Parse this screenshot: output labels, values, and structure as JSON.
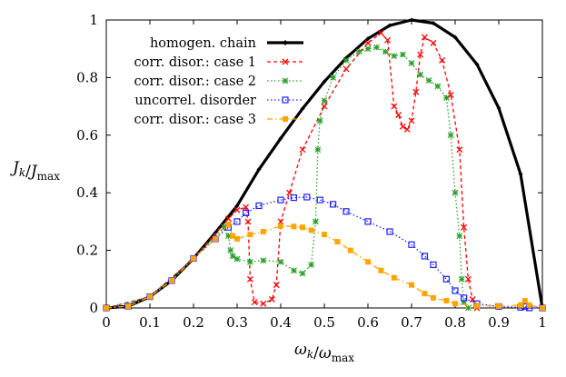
{
  "chart_data": {
    "type": "line",
    "xlabel": "ω_k/ω_max",
    "ylabel": "J_k/J_max",
    "xlim": [
      0,
      1
    ],
    "ylim": [
      0,
      1
    ],
    "grid": false,
    "legend_position": "top-left",
    "x_ticks": [
      "0",
      "0.1",
      "0.2",
      "0.3",
      "0.4",
      "0.5",
      "0.6",
      "0.7",
      "0.8",
      "0.9",
      "1"
    ],
    "y_ticks": [
      "0",
      "0.2",
      "0.4",
      "0.6",
      "0.8",
      "1"
    ],
    "series": [
      {
        "name": "homogen. chain",
        "color": "#000000",
        "marker": "diamond",
        "style": "solid",
        "points": [
          [
            0.0,
            0.0
          ],
          [
            0.05,
            0.006
          ],
          [
            0.1,
            0.039
          ],
          [
            0.15,
            0.095
          ],
          [
            0.2,
            0.172
          ],
          [
            0.25,
            0.261
          ],
          [
            0.3,
            0.355
          ],
          [
            0.35,
            0.481
          ],
          [
            0.4,
            0.589
          ],
          [
            0.45,
            0.692
          ],
          [
            0.5,
            0.786
          ],
          [
            0.55,
            0.868
          ],
          [
            0.6,
            0.935
          ],
          [
            0.65,
            0.981
          ],
          [
            0.7,
            1.0
          ],
          [
            0.75,
            0.989
          ],
          [
            0.8,
            0.94
          ],
          [
            0.85,
            0.846
          ],
          [
            0.9,
            0.694
          ],
          [
            0.95,
            0.465
          ],
          [
            1.0,
            0.0
          ]
        ]
      },
      {
        "name": "corr. disor.: case 1",
        "color": "#ff0000",
        "marker": "x",
        "style": "dashed",
        "points": [
          [
            0.0,
            0.0
          ],
          [
            0.1,
            0.039
          ],
          [
            0.2,
            0.172
          ],
          [
            0.28,
            0.31
          ],
          [
            0.3,
            0.34
          ],
          [
            0.32,
            0.35
          ],
          [
            0.325,
            0.3
          ],
          [
            0.33,
            0.1
          ],
          [
            0.34,
            0.02
          ],
          [
            0.36,
            0.015
          ],
          [
            0.38,
            0.03
          ],
          [
            0.39,
            0.08
          ],
          [
            0.4,
            0.3
          ],
          [
            0.42,
            0.4
          ],
          [
            0.45,
            0.55
          ],
          [
            0.5,
            0.7
          ],
          [
            0.55,
            0.83
          ],
          [
            0.6,
            0.92
          ],
          [
            0.63,
            0.955
          ],
          [
            0.645,
            0.93
          ],
          [
            0.66,
            0.7
          ],
          [
            0.67,
            0.67
          ],
          [
            0.68,
            0.63
          ],
          [
            0.69,
            0.62
          ],
          [
            0.7,
            0.65
          ],
          [
            0.71,
            0.75
          ],
          [
            0.72,
            0.88
          ],
          [
            0.73,
            0.94
          ],
          [
            0.75,
            0.92
          ],
          [
            0.77,
            0.86
          ],
          [
            0.79,
            0.74
          ],
          [
            0.81,
            0.55
          ],
          [
            0.82,
            0.28
          ],
          [
            0.83,
            0.1
          ],
          [
            0.84,
            0.03
          ],
          [
            0.85,
            0.0
          ]
        ]
      },
      {
        "name": "corr. disor.: case 2",
        "color": "#2ca02c",
        "marker": "asterisk",
        "style": "dotted",
        "points": [
          [
            0.0,
            0.0
          ],
          [
            0.1,
            0.039
          ],
          [
            0.2,
            0.172
          ],
          [
            0.27,
            0.28
          ],
          [
            0.28,
            0.25
          ],
          [
            0.285,
            0.2
          ],
          [
            0.29,
            0.18
          ],
          [
            0.3,
            0.17
          ],
          [
            0.33,
            0.16
          ],
          [
            0.36,
            0.165
          ],
          [
            0.4,
            0.16
          ],
          [
            0.43,
            0.13
          ],
          [
            0.45,
            0.12
          ],
          [
            0.47,
            0.15
          ],
          [
            0.48,
            0.3
          ],
          [
            0.485,
            0.55
          ],
          [
            0.49,
            0.65
          ],
          [
            0.5,
            0.72
          ],
          [
            0.52,
            0.8
          ],
          [
            0.55,
            0.86
          ],
          [
            0.58,
            0.89
          ],
          [
            0.6,
            0.9
          ],
          [
            0.62,
            0.905
          ],
          [
            0.64,
            0.89
          ],
          [
            0.66,
            0.875
          ],
          [
            0.68,
            0.88
          ],
          [
            0.7,
            0.85
          ],
          [
            0.72,
            0.81
          ],
          [
            0.74,
            0.79
          ],
          [
            0.76,
            0.77
          ],
          [
            0.78,
            0.73
          ],
          [
            0.79,
            0.6
          ],
          [
            0.8,
            0.4
          ],
          [
            0.81,
            0.25
          ],
          [
            0.815,
            0.1
          ],
          [
            0.82,
            0.02
          ],
          [
            0.83,
            0.0
          ]
        ]
      },
      {
        "name": "uncorrel. disorder",
        "color": "#1f1fff",
        "marker": "square-open",
        "style": "dotted",
        "points": [
          [
            0.0,
            0.0
          ],
          [
            0.05,
            0.006
          ],
          [
            0.1,
            0.039
          ],
          [
            0.15,
            0.095
          ],
          [
            0.2,
            0.172
          ],
          [
            0.25,
            0.24
          ],
          [
            0.28,
            0.28
          ],
          [
            0.3,
            0.3
          ],
          [
            0.32,
            0.33
          ],
          [
            0.35,
            0.355
          ],
          [
            0.4,
            0.375
          ],
          [
            0.43,
            0.383
          ],
          [
            0.46,
            0.385
          ],
          [
            0.49,
            0.375
          ],
          [
            0.52,
            0.36
          ],
          [
            0.55,
            0.335
          ],
          [
            0.6,
            0.3
          ],
          [
            0.65,
            0.265
          ],
          [
            0.7,
            0.22
          ],
          [
            0.73,
            0.18
          ],
          [
            0.75,
            0.15
          ],
          [
            0.78,
            0.1
          ],
          [
            0.8,
            0.06
          ],
          [
            0.82,
            0.035
          ],
          [
            0.85,
            0.015
          ],
          [
            0.9,
            0.005
          ],
          [
            0.95,
            0.002
          ],
          [
            0.96,
            0.005
          ],
          [
            0.97,
            0.0
          ],
          [
            1.0,
            0.0
          ]
        ]
      },
      {
        "name": "corr. disor.: case 3",
        "color": "#ffa500",
        "marker": "square",
        "style": "dashdot",
        "points": [
          [
            0.0,
            0.0
          ],
          [
            0.05,
            0.006
          ],
          [
            0.1,
            0.039
          ],
          [
            0.15,
            0.095
          ],
          [
            0.2,
            0.172
          ],
          [
            0.25,
            0.24
          ],
          [
            0.28,
            0.29
          ],
          [
            0.29,
            0.25
          ],
          [
            0.3,
            0.24
          ],
          [
            0.33,
            0.255
          ],
          [
            0.36,
            0.265
          ],
          [
            0.4,
            0.285
          ],
          [
            0.43,
            0.283
          ],
          [
            0.45,
            0.28
          ],
          [
            0.47,
            0.27
          ],
          [
            0.5,
            0.255
          ],
          [
            0.53,
            0.23
          ],
          [
            0.56,
            0.2
          ],
          [
            0.6,
            0.16
          ],
          [
            0.63,
            0.13
          ],
          [
            0.66,
            0.105
          ],
          [
            0.7,
            0.08
          ],
          [
            0.73,
            0.05
          ],
          [
            0.75,
            0.035
          ],
          [
            0.78,
            0.025
          ],
          [
            0.8,
            0.015
          ],
          [
            0.85,
            0.008
          ],
          [
            0.9,
            0.006
          ],
          [
            0.95,
            0.01
          ],
          [
            0.96,
            0.025
          ],
          [
            0.97,
            0.01
          ],
          [
            1.0,
            0.0
          ]
        ]
      }
    ]
  }
}
